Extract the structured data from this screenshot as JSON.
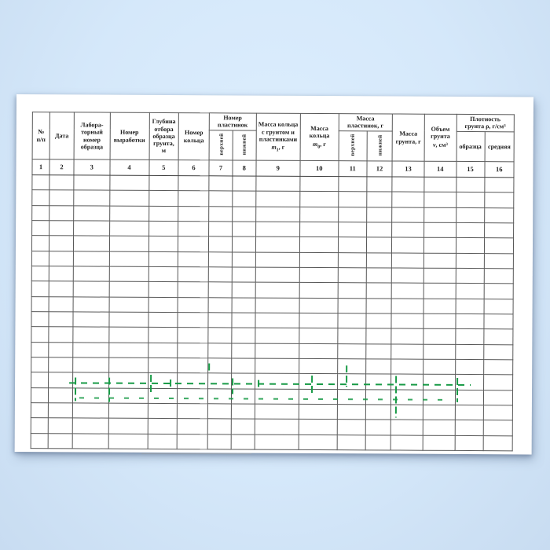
{
  "background": {
    "tint_center": "#deeffe",
    "tint_edge": "#c8dcf1"
  },
  "paper": {
    "color": "#ffffff"
  },
  "table": {
    "grid_color": "#585858",
    "group_headers": {
      "plates_number": "Номер\nпластинок",
      "plates_mass": "Масса\nпластинок, г",
      "density": "Плотность\nгрунта ρ, г/см³"
    },
    "headers": {
      "col1": "№\nп/п",
      "col2": "Дата",
      "col3": "Лабора-\nторный\nномер\nобразца",
      "col4": "Номер\nвыработки",
      "col5": "Глубина\nотбора\nобразца\nгрунта,\nм",
      "col6": "Номер\nкольца",
      "col7": "верхней",
      "col8": "нижней",
      "col9": {
        "lines": "Масса кольца\nс грунтом и\nпластинками",
        "var": "m",
        "sub": "1",
        "unit": ", г"
      },
      "col10": {
        "lines": "Масса\nкольца",
        "var": "m",
        "sub": "0",
        "unit": ", г"
      },
      "col11": "верхней",
      "col12": "нижней",
      "col13": "Масса\nгрунта, г",
      "col14": {
        "lines": "Объем\nгрунта",
        "var": "v",
        "sub": "",
        "unit": ", см³"
      },
      "col15": "образца",
      "col16": "средняя"
    },
    "column_numbers": [
      "1",
      "2",
      "3",
      "4",
      "5",
      "6",
      "7",
      "8",
      "9",
      "10",
      "11",
      "12",
      "13",
      "14",
      "15",
      "16"
    ],
    "body_rows": 18
  },
  "annotation": {
    "color": "#189a46"
  }
}
